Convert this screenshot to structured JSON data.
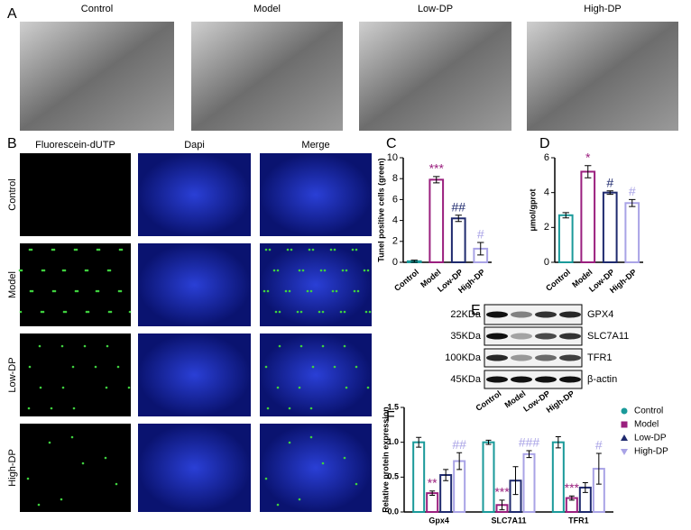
{
  "figure": {
    "panel_labels": [
      "A",
      "B",
      "C",
      "D",
      "E",
      "F"
    ],
    "tem": {
      "columns": [
        "Control",
        "Model",
        "Low-DP",
        "High-DP"
      ]
    },
    "tunel": {
      "columns": [
        "Fluorescein-dUTP",
        "Dapi",
        "Merge"
      ],
      "rows": [
        "Control",
        "Model",
        "Low-DP",
        "High-DP"
      ]
    },
    "blot": {
      "weights": [
        "22KDa",
        "35KDa",
        "100KDa",
        "45KDa"
      ],
      "proteins": [
        "GPX4",
        "SLC7A11",
        "TFR1",
        "β-actin"
      ],
      "lanes": [
        "Control",
        "Model",
        "Low-DP",
        "High-DP"
      ]
    }
  },
  "chart_data": [
    {
      "type": "bar",
      "y_label": "Tunel positive cells (green)",
      "categories": [
        "Control",
        "Model",
        "Low-DP",
        "High-DP"
      ],
      "values": [
        0.1,
        7.9,
        4.2,
        1.3
      ],
      "errors": [
        0.1,
        0.3,
        0.3,
        0.6
      ],
      "significance": [
        null,
        "***",
        "##",
        "#"
      ],
      "colors": [
        "#1a9a9a",
        "#9a1f7e",
        "#1f2a6e",
        "#a9a3e6"
      ],
      "ylim": [
        0,
        10
      ],
      "yticks": [
        0,
        2,
        4,
        6,
        8,
        10
      ]
    },
    {
      "type": "bar",
      "y_label": "μmol/gprot",
      "categories": [
        "Control",
        "Model",
        "Low-DP",
        "High-DP"
      ],
      "values": [
        2.7,
        5.2,
        4.0,
        3.4
      ],
      "errors": [
        0.15,
        0.35,
        0.1,
        0.2
      ],
      "significance": [
        null,
        "*",
        "#",
        "#"
      ],
      "colors": [
        "#1a9a9a",
        "#9a1f7e",
        "#1f2a6e",
        "#a9a3e6"
      ],
      "ylim": [
        0,
        6
      ],
      "yticks": [
        0,
        2,
        4,
        6
      ]
    },
    {
      "type": "bar",
      "y_label": "Relative protein expression",
      "categories": [
        "Gpx4",
        "SLC7A11",
        "TFR1"
      ],
      "series": [
        {
          "name": "Control",
          "color": "#1a9a9a",
          "values": [
            1.0,
            1.0,
            1.0
          ],
          "errors": [
            0.07,
            0.03,
            0.08
          ],
          "significance": [
            null,
            null,
            null
          ]
        },
        {
          "name": "Model",
          "color": "#9a1f7e",
          "values": [
            0.27,
            0.1,
            0.2
          ],
          "errors": [
            0.03,
            0.07,
            0.03
          ],
          "significance": [
            "**",
            "***",
            "***"
          ]
        },
        {
          "name": "Low-DP",
          "color": "#1f2a6e",
          "values": [
            0.53,
            0.45,
            0.35
          ],
          "errors": [
            0.08,
            0.2,
            0.07
          ],
          "significance": [
            null,
            null,
            null
          ]
        },
        {
          "name": "High-DP",
          "color": "#a9a3e6",
          "values": [
            0.73,
            0.83,
            0.62
          ],
          "errors": [
            0.12,
            0.05,
            0.22
          ],
          "significance": [
            "##",
            "###",
            "#"
          ]
        }
      ],
      "ylim": [
        0,
        1.5
      ],
      "yticks": [
        {
          "value": 0,
          "label": "0.0"
        },
        {
          "value": 0.5,
          "label": "0.5"
        },
        {
          "value": 1,
          "label": "1.0"
        },
        {
          "value": 1.5,
          "label": "1.5"
        }
      ]
    }
  ]
}
